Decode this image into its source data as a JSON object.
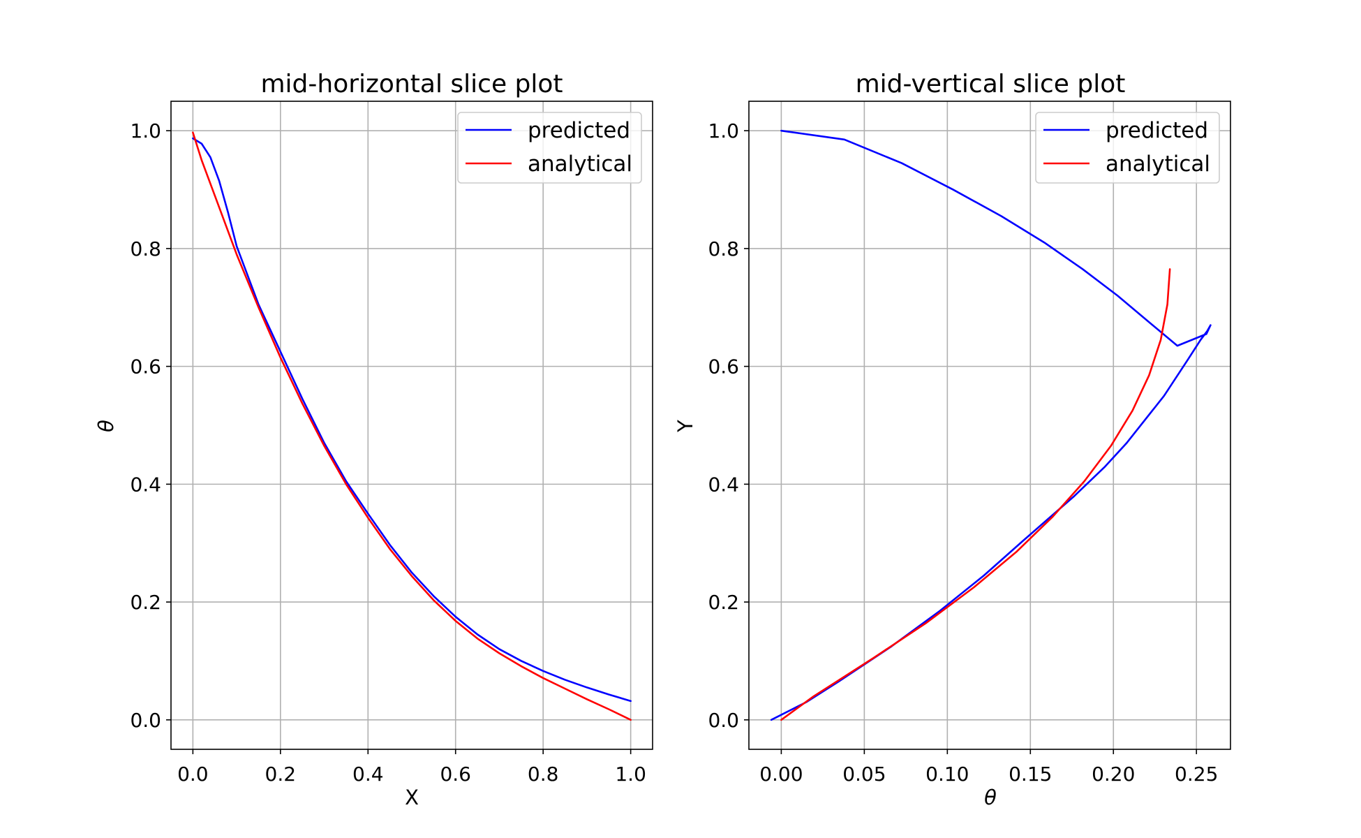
{
  "chart_data": [
    {
      "type": "line",
      "title": "mid-horizontal slice plot",
      "xlabel": "X",
      "ylabel": "θ",
      "xlim": [
        -0.05,
        1.05
      ],
      "ylim": [
        -0.05,
        1.05
      ],
      "xticks": [
        "0.0",
        "0.2",
        "0.4",
        "0.6",
        "0.8",
        "1.0"
      ],
      "yticks": [
        "0.0",
        "0.2",
        "0.4",
        "0.6",
        "0.8",
        "1.0"
      ],
      "grid": true,
      "legend": "top-right",
      "series": [
        {
          "name": "predicted",
          "color": "#0000ff",
          "points": [
            [
              0.0,
              0.987
            ],
            [
              0.02,
              0.978
            ],
            [
              0.04,
              0.955
            ],
            [
              0.06,
              0.915
            ],
            [
              0.08,
              0.862
            ],
            [
              0.1,
              0.804
            ],
            [
              0.15,
              0.705
            ],
            [
              0.2,
              0.625
            ],
            [
              0.25,
              0.545
            ],
            [
              0.3,
              0.47
            ],
            [
              0.35,
              0.405
            ],
            [
              0.4,
              0.35
            ],
            [
              0.45,
              0.297
            ],
            [
              0.5,
              0.25
            ],
            [
              0.55,
              0.21
            ],
            [
              0.6,
              0.175
            ],
            [
              0.65,
              0.145
            ],
            [
              0.7,
              0.12
            ],
            [
              0.75,
              0.1
            ],
            [
              0.8,
              0.083
            ],
            [
              0.85,
              0.068
            ],
            [
              0.9,
              0.055
            ],
            [
              0.95,
              0.043
            ],
            [
              1.0,
              0.032
            ]
          ]
        },
        {
          "name": "analytical",
          "color": "#ff0000",
          "points": [
            [
              0.0,
              0.997
            ],
            [
              0.02,
              0.95
            ],
            [
              0.05,
              0.89
            ],
            [
              0.1,
              0.79
            ],
            [
              0.15,
              0.7
            ],
            [
              0.2,
              0.615
            ],
            [
              0.25,
              0.537
            ],
            [
              0.3,
              0.465
            ],
            [
              0.35,
              0.4
            ],
            [
              0.4,
              0.343
            ],
            [
              0.45,
              0.29
            ],
            [
              0.5,
              0.244
            ],
            [
              0.55,
              0.203
            ],
            [
              0.6,
              0.168
            ],
            [
              0.65,
              0.138
            ],
            [
              0.7,
              0.113
            ],
            [
              0.75,
              0.091
            ],
            [
              0.8,
              0.071
            ],
            [
              0.85,
              0.053
            ],
            [
              0.9,
              0.035
            ],
            [
              0.95,
              0.018
            ],
            [
              1.0,
              0.0
            ]
          ]
        }
      ]
    },
    {
      "type": "line",
      "title": "mid-vertical slice plot",
      "xlabel": "θ",
      "ylabel": "Y",
      "xlim": [
        -0.0195,
        0.2705
      ],
      "ylim": [
        -0.05,
        1.05
      ],
      "xticks": [
        "0.00",
        "0.05",
        "0.10",
        "0.15",
        "0.20",
        "0.25"
      ],
      "yticks": [
        "0.0",
        "0.2",
        "0.4",
        "0.6",
        "0.8",
        "1.0"
      ],
      "grid": true,
      "legend": "top-right",
      "series": [
        {
          "name": "predicted",
          "color": "#0000ff",
          "points": [
            [
              -0.006,
              0.0
            ],
            [
              0.015,
              0.03
            ],
            [
              0.0345,
              0.065
            ],
            [
              0.0665,
              0.125
            ],
            [
              0.0955,
              0.185
            ],
            [
              0.122,
              0.245
            ],
            [
              0.146,
              0.305
            ],
            [
              0.1765,
              0.38
            ],
            [
              0.195,
              0.43
            ],
            [
              0.208,
              0.47
            ],
            [
              0.2305,
              0.55
            ],
            [
              0.2445,
              0.61
            ],
            [
              0.2525,
              0.645
            ],
            [
              0.2565,
              0.66
            ],
            [
              0.2575,
              0.665
            ],
            [
              0.2585,
              0.67
            ],
            [
              0.256,
              0.655
            ],
            [
              0.2385,
              0.635
            ],
            [
              0.2215,
              0.675
            ],
            [
              0.2025,
              0.72
            ],
            [
              0.1815,
              0.765
            ],
            [
              0.1585,
              0.81
            ],
            [
              0.1325,
              0.855
            ],
            [
              0.1035,
              0.9
            ],
            [
              0.0725,
              0.945
            ],
            [
              0.038,
              0.985
            ],
            [
              0.0,
              1.0
            ]
          ]
        },
        {
          "name": "analytical",
          "color": "#ff0000",
          "points": [
            [
              0.0,
              0.0
            ],
            [
              0.0195,
              0.04
            ],
            [
              0.0555,
              0.105
            ],
            [
              0.0875,
              0.165
            ],
            [
              0.116,
              0.225
            ],
            [
              0.1415,
              0.285
            ],
            [
              0.1635,
              0.345
            ],
            [
              0.1825,
              0.405
            ],
            [
              0.1985,
              0.465
            ],
            [
              0.2115,
              0.525
            ],
            [
              0.2215,
              0.585
            ],
            [
              0.2285,
              0.645
            ],
            [
              0.2325,
              0.705
            ],
            [
              0.234,
              0.765
            ],
            [
              0.2325,
              0.705
            ],
            [
              0.2285,
              0.645
            ],
            [
              0.2215,
              0.585
            ],
            [
              0.2115,
              0.525
            ],
            [
              0.1985,
              0.465
            ],
            [
              0.1825,
              0.405
            ],
            [
              0.1635,
              0.345
            ],
            [
              0.1415,
              0.285
            ],
            [
              0.116,
              0.225
            ],
            [
              0.0875,
              0.165
            ],
            [
              0.0555,
              0.105
            ],
            [
              0.0195,
              0.04
            ],
            [
              0.0,
              0.0
            ]
          ]
        }
      ]
    }
  ]
}
